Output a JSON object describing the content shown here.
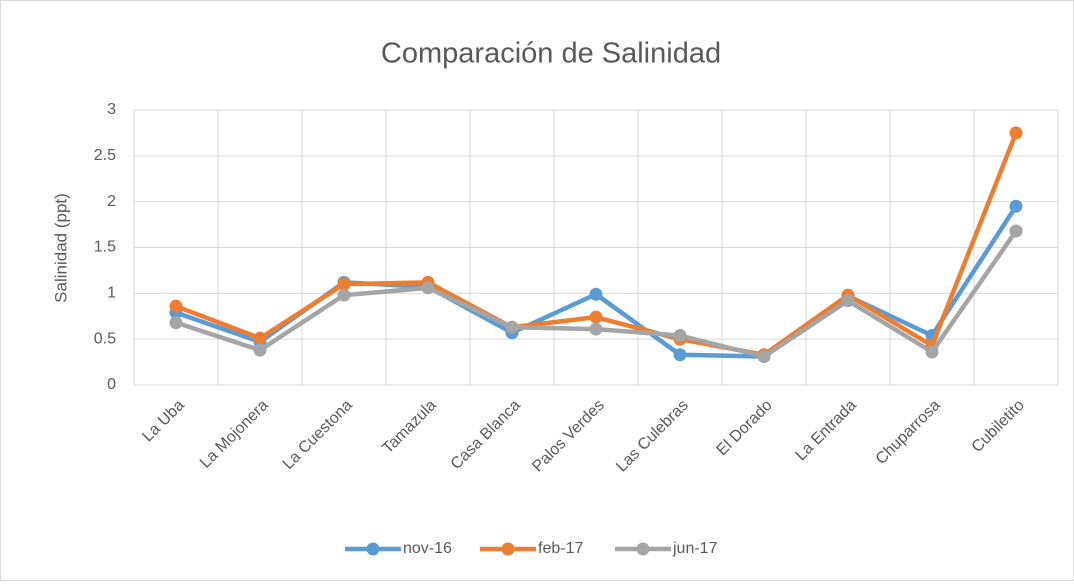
{
  "chart_data": {
    "type": "line",
    "title": "Comparación de Salinidad",
    "y_label": "Salinidad (ppt)",
    "categories": [
      "La Uba",
      "La Mojonera",
      "La Cuestona",
      "Tamazula",
      "Casa Blanca",
      "Palos Verdes",
      "Las Culebras",
      "El Dorado",
      "La Entrada",
      "Chuparrosa",
      "Cubiletito"
    ],
    "series": [
      {
        "name": "nov-16",
        "color": "#5b9bd5",
        "values": [
          0.79,
          0.47,
          1.12,
          1.07,
          0.57,
          0.99,
          0.33,
          0.31,
          0.97,
          0.54,
          1.95
        ]
      },
      {
        "name": "feb-17",
        "color": "#ed7d31",
        "values": [
          0.86,
          0.51,
          1.1,
          1.12,
          0.63,
          0.74,
          0.5,
          0.33,
          0.98,
          0.43,
          2.75
        ]
      },
      {
        "name": "jun-17",
        "color": "#a5a5a5",
        "values": [
          0.68,
          0.38,
          0.98,
          1.06,
          0.63,
          0.61,
          0.54,
          0.31,
          0.92,
          0.36,
          1.68
        ]
      }
    ],
    "ylim": [
      0,
      3
    ],
    "yticks": [
      0,
      0.5,
      1,
      1.5,
      2,
      2.5,
      3
    ],
    "grid": true,
    "legend": "bottom"
  }
}
